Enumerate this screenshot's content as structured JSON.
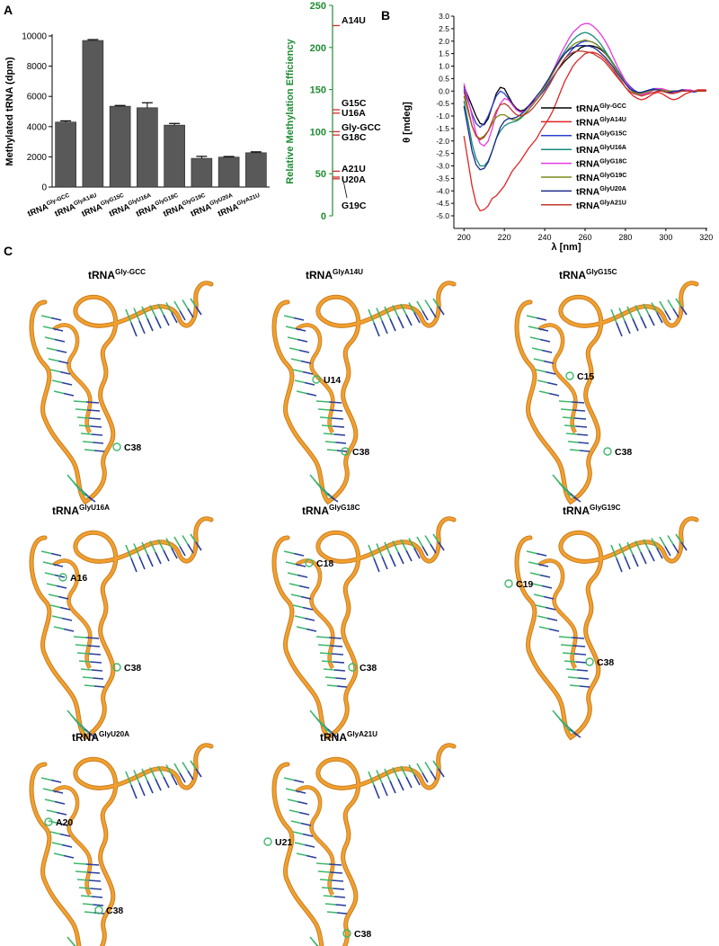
{
  "panel_labels": [
    "A",
    "B",
    "C"
  ],
  "chart_data": [
    {
      "id": "A1",
      "type": "bar",
      "categories": [
        {
          "base": "tRNA",
          "sup": "Gly-GCC"
        },
        {
          "base": "tRNA",
          "sup": "GlyA14U"
        },
        {
          "base": "tRNA",
          "sup": "GlyG15C"
        },
        {
          "base": "tRNA",
          "sup": "GlyU16A"
        },
        {
          "base": "tRNA",
          "sup": "GlyG18C"
        },
        {
          "base": "tRNA",
          "sup": "GlyG19C"
        },
        {
          "base": "tRNA",
          "sup": "GlyU20A"
        },
        {
          "base": "tRNA",
          "sup": "GlyA21U"
        }
      ],
      "values": [
        4300,
        9700,
        5350,
        5250,
        4100,
        1900,
        1980,
        2270
      ],
      "errors": [
        80,
        60,
        50,
        330,
        110,
        130,
        40,
        60
      ],
      "ylabel": "Methylated tRNA (dpm)",
      "ylim": [
        0,
        10000
      ],
      "yticks": [
        "0",
        "2000",
        "4000",
        "6000",
        "8000",
        "10000"
      ],
      "bar_color": "#595959"
    },
    {
      "id": "A2",
      "type": "scatter",
      "ylabel": "Relative  Methylation Efficiency",
      "ylim": [
        0,
        250
      ],
      "yticks": [
        "0",
        "50",
        "100",
        "150",
        "200",
        "250"
      ],
      "axis_color": "#1e8c32",
      "marker_color": "#d62a2a",
      "points": [
        {
          "label": "A14U",
          "value": 226
        },
        {
          "label": "G15C",
          "value": 126
        },
        {
          "label": "U16A",
          "value": 122
        },
        {
          "label": "Gly-GCC",
          "value": 100
        },
        {
          "label": "G18C",
          "value": 96
        },
        {
          "label": "A21U",
          "value": 53
        },
        {
          "label": "U20A",
          "value": 46
        },
        {
          "label": "G19C",
          "value": 44
        }
      ]
    },
    {
      "id": "B",
      "type": "line",
      "xlabel": "λ [nm]",
      "ylabel": "θ [mdeg]",
      "xlim": [
        195,
        325
      ],
      "ylim": [
        -5.0,
        3.0
      ],
      "xticks": [
        "200",
        "220",
        "240",
        "260",
        "280",
        "300",
        "320"
      ],
      "yticks": [
        "-5.0",
        "-4.5",
        "-4.0",
        "-3.5",
        "-3.0",
        "-2.5",
        "-2.0",
        "-1.5",
        "-1.0",
        "-0.5",
        "0.0",
        "0.5",
        "1.0",
        "1.5",
        "2.0",
        "2.5",
        "3.0"
      ],
      "x": [
        200,
        202,
        204,
        206,
        208,
        210,
        212,
        214,
        216,
        218,
        220,
        222,
        224,
        226,
        228,
        230,
        232,
        234,
        236,
        238,
        240,
        242,
        244,
        246,
        248,
        250,
        252,
        254,
        256,
        258,
        260,
        262,
        264,
        266,
        268,
        270,
        272,
        274,
        276,
        278,
        280,
        282,
        284,
        286,
        288,
        290,
        292,
        294,
        296,
        298,
        300,
        302,
        304,
        306,
        308,
        310,
        312,
        314,
        316,
        318,
        320
      ],
      "series": [
        {
          "name": "Gly-GCC",
          "color": "#000000",
          "values": [
            0.2,
            -0.2,
            -0.6,
            -1.0,
            -1.3,
            -1.35,
            -1.1,
            -0.6,
            -0.1,
            0.15,
            0.1,
            -0.2,
            -0.5,
            -0.7,
            -0.8,
            -0.75,
            -0.6,
            -0.45,
            -0.3,
            -0.1,
            0.1,
            0.3,
            0.55,
            0.8,
            1.0,
            1.2,
            1.35,
            1.5,
            1.6,
            1.75,
            1.8,
            1.82,
            1.8,
            1.75,
            1.65,
            1.5,
            1.3,
            1.1,
            0.85,
            0.6,
            0.4,
            0.2,
            0.05,
            -0.05,
            -0.1,
            -0.05,
            0.0,
            0.05,
            0.05,
            0.05,
            0.0,
            -0.05,
            -0.08,
            -0.05,
            0.0,
            0.02,
            0.0,
            0.0,
            0.0,
            0.0,
            0.0
          ]
        },
        {
          "name": "GlyA14U",
          "color": "#e02424",
          "values": [
            -1.8,
            -2.8,
            -3.8,
            -4.5,
            -4.8,
            -4.75,
            -4.6,
            -4.3,
            -4.2,
            -4.0,
            -3.8,
            -3.5,
            -3.2,
            -3.0,
            -2.8,
            -2.55,
            -2.3,
            -2.1,
            -1.9,
            -1.6,
            -1.35,
            -1.1,
            -0.8,
            -0.4,
            0.0,
            0.4,
            0.7,
            1.0,
            1.2,
            1.35,
            1.5,
            1.55,
            1.55,
            1.5,
            1.4,
            1.25,
            1.05,
            0.85,
            0.6,
            0.4,
            0.15,
            -0.05,
            -0.2,
            -0.3,
            -0.35,
            -0.3,
            -0.2,
            -0.1,
            -0.05,
            -0.1,
            -0.2,
            -0.3,
            -0.35,
            -0.3,
            -0.2,
            -0.1,
            -0.05,
            0.0,
            0.05,
            0.05,
            0.05
          ]
        },
        {
          "name": "GlyG15C",
          "color": "#2b3fd0",
          "values": [
            0.1,
            -0.4,
            -0.9,
            -1.3,
            -1.45,
            -1.3,
            -1.0,
            -0.6,
            -0.2,
            0.0,
            -0.1,
            -0.3,
            -0.55,
            -0.75,
            -0.85,
            -0.8,
            -0.65,
            -0.5,
            -0.35,
            -0.15,
            0.05,
            0.3,
            0.55,
            0.8,
            1.05,
            1.3,
            1.5,
            1.7,
            1.85,
            1.95,
            2.0,
            2.0,
            1.95,
            1.85,
            1.7,
            1.55,
            1.35,
            1.1,
            0.85,
            0.6,
            0.4,
            0.2,
            0.05,
            -0.05,
            -0.05,
            0.0,
            0.05,
            0.1,
            0.1,
            0.05,
            0.0,
            -0.05,
            -0.05,
            0.0,
            0.05,
            0.05,
            0.0,
            -0.05,
            0.0,
            0.0,
            0.0
          ]
        },
        {
          "name": "GlyU16A",
          "color": "#148c7a",
          "values": [
            -0.4,
            -1.2,
            -2.1,
            -2.7,
            -3.0,
            -3.0,
            -2.8,
            -2.4,
            -1.9,
            -1.6,
            -1.4,
            -1.3,
            -1.25,
            -1.2,
            -1.1,
            -0.95,
            -0.75,
            -0.55,
            -0.35,
            -0.1,
            0.15,
            0.45,
            0.75,
            1.05,
            1.35,
            1.6,
            1.85,
            2.05,
            2.2,
            2.3,
            2.35,
            2.3,
            2.2,
            2.05,
            1.85,
            1.6,
            1.35,
            1.1,
            0.8,
            0.55,
            0.3,
            0.1,
            -0.05,
            -0.1,
            -0.1,
            -0.05,
            0.0,
            0.05,
            0.05,
            0.05,
            0.0,
            0.0,
            0.0,
            0.0,
            0.05,
            0.05,
            0.0,
            0.0,
            0.0,
            0.0,
            0.0
          ]
        },
        {
          "name": "GlyG18C",
          "color": "#e83ae0",
          "values": [
            0.3,
            -0.3,
            -1.0,
            -1.7,
            -2.1,
            -2.2,
            -2.0,
            -1.5,
            -0.9,
            -0.5,
            -0.3,
            -0.35,
            -0.55,
            -0.75,
            -0.85,
            -0.8,
            -0.65,
            -0.5,
            -0.3,
            -0.1,
            0.15,
            0.45,
            0.8,
            1.15,
            1.5,
            1.8,
            2.1,
            2.35,
            2.5,
            2.65,
            2.7,
            2.7,
            2.6,
            2.45,
            2.25,
            2.0,
            1.7,
            1.35,
            1.0,
            0.7,
            0.4,
            0.15,
            0.0,
            -0.1,
            -0.15,
            -0.1,
            -0.05,
            0.05,
            0.1,
            0.1,
            0.05,
            0.0,
            -0.05,
            0.0,
            0.05,
            0.05,
            0.05,
            0.0,
            0.0,
            0.0,
            0.0
          ]
        },
        {
          "name": "GlyG19C",
          "color": "#7a8a1a",
          "values": [
            -0.2,
            -0.8,
            -1.4,
            -1.8,
            -1.9,
            -1.8,
            -1.6,
            -1.3,
            -1.05,
            -0.95,
            -0.95,
            -1.05,
            -1.15,
            -1.15,
            -1.05,
            -0.9,
            -0.75,
            -0.55,
            -0.35,
            -0.1,
            0.15,
            0.4,
            0.7,
            1.0,
            1.25,
            1.5,
            1.7,
            1.85,
            1.95,
            2.0,
            2.05,
            2.0,
            1.95,
            1.85,
            1.7,
            1.5,
            1.3,
            1.05,
            0.8,
            0.55,
            0.3,
            0.1,
            -0.05,
            -0.1,
            -0.1,
            -0.05,
            0.0,
            0.05,
            0.05,
            0.05,
            0.0,
            0.0,
            0.0,
            0.0,
            0.0,
            0.0,
            0.0,
            0.0,
            0.0,
            0.0,
            0.0
          ]
        },
        {
          "name": "GlyU20A",
          "color": "#1c2a8c",
          "values": [
            -0.6,
            -1.5,
            -2.4,
            -2.95,
            -3.15,
            -3.1,
            -2.85,
            -2.4,
            -1.9,
            -1.45,
            -1.2,
            -1.1,
            -1.1,
            -1.05,
            -0.95,
            -0.8,
            -0.6,
            -0.4,
            -0.2,
            0.0,
            0.25,
            0.5,
            0.8,
            1.05,
            1.3,
            1.5,
            1.65,
            1.75,
            1.8,
            1.82,
            1.82,
            1.8,
            1.75,
            1.65,
            1.5,
            1.35,
            1.15,
            0.95,
            0.7,
            0.5,
            0.3,
            0.1,
            0.0,
            -0.05,
            -0.05,
            0.0,
            0.05,
            0.05,
            0.05,
            0.0,
            -0.05,
            -0.05,
            0.0,
            0.0,
            0.05,
            0.0,
            0.0,
            0.0,
            0.0,
            0.0,
            0.0
          ]
        },
        {
          "name": "GlyA21U",
          "color": "#c0392b",
          "values": [
            0.0,
            -0.7,
            -1.4,
            -1.8,
            -1.95,
            -1.85,
            -1.6,
            -1.2,
            -0.8,
            -0.55,
            -0.5,
            -0.6,
            -0.8,
            -0.95,
            -1.0,
            -0.95,
            -0.85,
            -0.7,
            -0.5,
            -0.3,
            -0.05,
            0.2,
            0.5,
            0.8,
            1.05,
            1.3,
            1.45,
            1.55,
            1.6,
            1.6,
            1.58,
            1.55,
            1.5,
            1.4,
            1.3,
            1.15,
            0.95,
            0.75,
            0.55,
            0.35,
            0.15,
            0.0,
            -0.1,
            -0.15,
            -0.2,
            -0.15,
            -0.1,
            -0.05,
            0.0,
            0.0,
            -0.05,
            -0.1,
            -0.1,
            -0.05,
            0.0,
            0.0,
            0.0,
            0.0,
            0.0,
            0.0,
            0.0
          ]
        }
      ],
      "legend": [
        {
          "base": "tRNA",
          "sup": "Gly-GCC",
          "color": "#000000"
        },
        {
          "base": "tRNA",
          "sup": "GlyA14U",
          "color": "#e02424"
        },
        {
          "base": "tRNA",
          "sup": "GlyG15C",
          "color": "#2b3fd0"
        },
        {
          "base": "tRNA",
          "sup": "GlyU16A",
          "color": "#148c7a"
        },
        {
          "base": "tRNA",
          "sup": "GlyG18C",
          "color": "#e83ae0"
        },
        {
          "base": "tRNA",
          "sup": "GlyG19C",
          "color": "#7a8a1a"
        },
        {
          "base": "tRNA",
          "sup": "GlyU20A",
          "color": "#1c2a8c"
        },
        {
          "base": "tRNA",
          "sup": "GlyA21U",
          "color": "#c0392b"
        }
      ],
      "legend_position": "right"
    }
  ],
  "structures": [
    {
      "title_base": "tRNA",
      "title_sup": "Gly-GCC",
      "labels": [
        "C38"
      ]
    },
    {
      "title_base": "tRNA",
      "title_sup": "GlyA14U",
      "labels": [
        "U14",
        "C38"
      ]
    },
    {
      "title_base": "tRNA",
      "title_sup": "GlyG15C",
      "labels": [
        "C15",
        "C38"
      ]
    },
    {
      "title_base": "tRNA",
      "title_sup": "GlyU16A",
      "labels": [
        "A16",
        "C38"
      ]
    },
    {
      "title_base": "tRNA",
      "title_sup": "GlyG18C",
      "labels": [
        "C18",
        "C38"
      ]
    },
    {
      "title_base": "tRNA",
      "title_sup": "GlyG19C",
      "labels": [
        "C19",
        "C38"
      ]
    },
    {
      "title_base": "tRNA",
      "title_sup": "GlyU20A",
      "labels": [
        "A20",
        "C38"
      ]
    },
    {
      "title_base": "tRNA",
      "title_sup": "GlyA21U",
      "labels": [
        "U21",
        "C38"
      ]
    }
  ],
  "colors": {
    "backbone": "#f0a030",
    "backbone_dark": "#c87818",
    "base_pair": "#2a3d9e",
    "base_pair_green": "#3cb86a"
  }
}
